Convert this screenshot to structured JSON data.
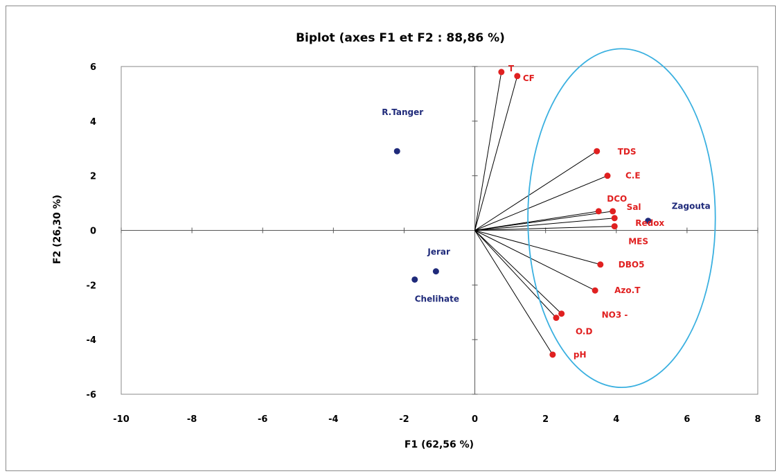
{
  "chart_data": {
    "type": "scatter",
    "title": "Biplot (axes F1 et F2 : 88,86 %)",
    "xlabel": "F1 (62,56 %)",
    "ylabel": "F2 (26,30 %)",
    "xlim": [
      -10,
      8
    ],
    "ylim": [
      -6,
      6
    ],
    "xticks": [
      "-10",
      "-8",
      "-6",
      "-4",
      "-2",
      "0",
      "2",
      "4",
      "6",
      "8"
    ],
    "yticks": [
      "6",
      "4",
      "2",
      "0",
      "-2",
      "-4",
      "-6"
    ],
    "grid": false,
    "series": [
      {
        "kind": "variables",
        "color": "#e02020",
        "points": [
          {
            "label": "T",
            "x": 0.75,
            "y": 5.8
          },
          {
            "label": "CF",
            "x": 1.2,
            "y": 5.65
          },
          {
            "label": "TDS",
            "x": 3.45,
            "y": 2.9
          },
          {
            "label": "C.E",
            "x": 3.75,
            "y": 2.0
          },
          {
            "label": "DCO",
            "x": 3.5,
            "y": 0.7
          },
          {
            "label": "Sal",
            "x": 3.9,
            "y": 0.7
          },
          {
            "label": "Redox",
            "x": 3.95,
            "y": 0.45
          },
          {
            "label": "MES",
            "x": 3.95,
            "y": 0.15
          },
          {
            "label": "DBO5",
            "x": 3.55,
            "y": -1.25
          },
          {
            "label": "Azo.T",
            "x": 3.4,
            "y": -2.2
          },
          {
            "label": "NO3 -",
            "x": 2.45,
            "y": -3.05
          },
          {
            "label": "O.D",
            "x": 2.3,
            "y": -3.2
          },
          {
            "label": "pH",
            "x": 2.2,
            "y": -4.55
          }
        ]
      },
      {
        "kind": "observations",
        "color": "#1f2a7a",
        "points": [
          {
            "label": "R.Tanger",
            "x": -2.2,
            "y": 2.9
          },
          {
            "label": "Zagouta",
            "x": 4.9,
            "y": 0.35
          },
          {
            "label": "Jerar",
            "x": -1.1,
            "y": -1.5
          },
          {
            "label": "Chelihate",
            "x": -1.7,
            "y": -1.8
          }
        ]
      }
    ],
    "ellipse": {
      "color": "#3ab0e0",
      "cx": 4.15,
      "cy": 0.45,
      "rx": 2.65,
      "ry": 6.2
    }
  }
}
